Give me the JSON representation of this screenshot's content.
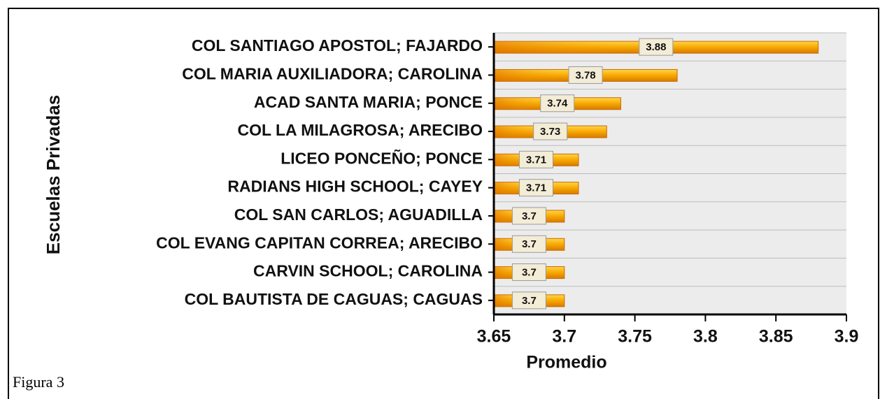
{
  "chart_data": {
    "type": "bar",
    "orientation": "horizontal",
    "x_label": "Promedio",
    "y_label": "Escuelas Privadas",
    "caption": "Figura 3",
    "categories": [
      "COL SANTIAGO APOSTOL; FAJARDO",
      "COL MARIA AUXILIADORA; CAROLINA",
      "ACAD SANTA MARIA; PONCE",
      "COL LA MILAGROSA; ARECIBO",
      "LICEO PONCEÑO; PONCE",
      "RADIANS HIGH SCHOOL; CAYEY",
      "COL SAN CARLOS; AGUADILLA",
      "COL EVANG CAPITAN CORREA; ARECIBO",
      "CARVIN SCHOOL; CAROLINA",
      "COL BAUTISTA DE CAGUAS; CAGUAS"
    ],
    "values": [
      3.88,
      3.78,
      3.74,
      3.73,
      3.71,
      3.71,
      3.7,
      3.7,
      3.7,
      3.7
    ],
    "color": "#f5a300",
    "xlim": [
      3.65,
      3.9
    ],
    "xticks": [
      3.65,
      3.7,
      3.75,
      3.8,
      3.85,
      3.9
    ]
  }
}
